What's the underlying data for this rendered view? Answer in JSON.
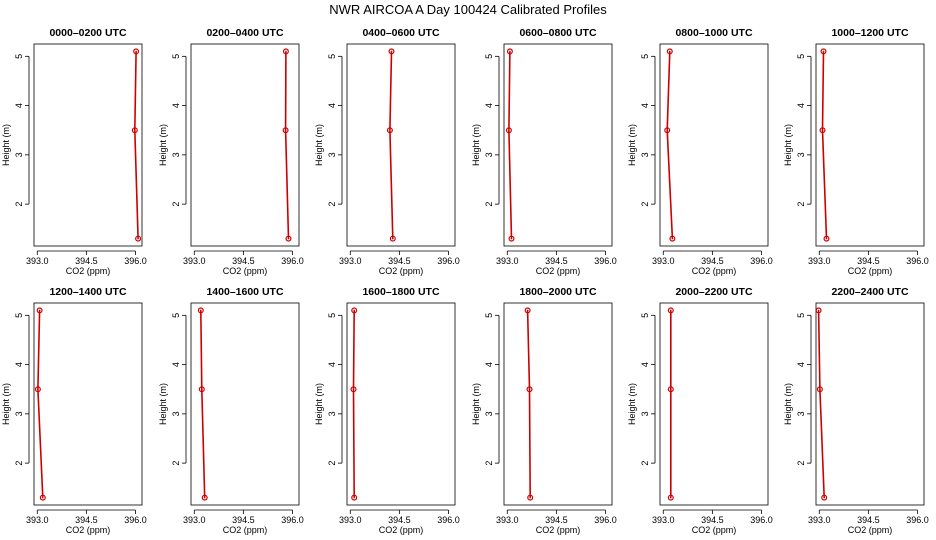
{
  "figure": {
    "title": "NWR AIRCOA A  Day 100424  Calibrated Profiles"
  },
  "style": {
    "line_color": "#cc0000",
    "point_color": "#cc0000",
    "axis_color": "#000000"
  },
  "chart_data": [
    {
      "type": "line",
      "title": "0000–0200 UTC",
      "xlabel": "CO2 (ppm)",
      "ylabel": "Height (m)",
      "xlim": [
        392.9,
        396.2
      ],
      "ylim": [
        1.15,
        5.25
      ],
      "xticks": [
        "393.0",
        "394.5",
        "396.0"
      ],
      "yticks": [
        "2",
        "3",
        "4",
        "5"
      ],
      "x": [
        396.08,
        395.98,
        396.02
      ],
      "y": [
        1.3,
        3.5,
        5.1
      ]
    },
    {
      "type": "line",
      "title": "0200–0400 UTC",
      "xlabel": "CO2 (ppm)",
      "ylabel": "Height (m)",
      "xlim": [
        392.9,
        396.2
      ],
      "ylim": [
        1.15,
        5.25
      ],
      "xticks": [
        "393.0",
        "394.5",
        "396.0"
      ],
      "yticks": [
        "2",
        "3",
        "4",
        "5"
      ],
      "x": [
        395.88,
        395.79,
        395.8
      ],
      "y": [
        1.3,
        3.5,
        5.1
      ]
    },
    {
      "type": "line",
      "title": "0400–0600 UTC",
      "xlabel": "CO2 (ppm)",
      "ylabel": "Height (m)",
      "xlim": [
        392.9,
        396.2
      ],
      "ylim": [
        1.15,
        5.25
      ],
      "xticks": [
        "393.0",
        "394.5",
        "396.0"
      ],
      "yticks": [
        "2",
        "3",
        "4",
        "5"
      ],
      "x": [
        394.3,
        394.21,
        394.26
      ],
      "y": [
        1.3,
        3.5,
        5.1
      ]
    },
    {
      "type": "line",
      "title": "0600–0800 UTC",
      "xlabel": "CO2 (ppm)",
      "ylabel": "Height (m)",
      "xlim": [
        392.9,
        396.2
      ],
      "ylim": [
        1.15,
        5.25
      ],
      "xticks": [
        "393.0",
        "394.5",
        "396.0"
      ],
      "yticks": [
        "2",
        "3",
        "4",
        "5"
      ],
      "x": [
        393.13,
        393.05,
        393.08
      ],
      "y": [
        1.3,
        3.5,
        5.1
      ]
    },
    {
      "type": "line",
      "title": "0800–1000 UTC",
      "xlabel": "CO2 (ppm)",
      "ylabel": "Height (m)",
      "xlim": [
        392.9,
        396.2
      ],
      "ylim": [
        1.15,
        5.25
      ],
      "xticks": [
        "393.0",
        "394.5",
        "396.0"
      ],
      "yticks": [
        "2",
        "3",
        "4",
        "5"
      ],
      "x": [
        393.28,
        393.12,
        393.2
      ],
      "y": [
        1.3,
        3.5,
        5.1
      ]
    },
    {
      "type": "line",
      "title": "1000–1200 UTC",
      "xlabel": "CO2 (ppm)",
      "ylabel": "Height (m)",
      "xlim": [
        392.9,
        396.2
      ],
      "ylim": [
        1.15,
        5.25
      ],
      "xticks": [
        "393.0",
        "394.5",
        "396.0"
      ],
      "yticks": [
        "2",
        "3",
        "4",
        "5"
      ],
      "x": [
        393.22,
        393.1,
        393.13
      ],
      "y": [
        1.3,
        3.5,
        5.1
      ]
    },
    {
      "type": "line",
      "title": "1200–1400 UTC",
      "xlabel": "CO2 (ppm)",
      "ylabel": "Height (m)",
      "xlim": [
        392.9,
        396.2
      ],
      "ylim": [
        1.15,
        5.25
      ],
      "xticks": [
        "393.0",
        "394.5",
        "396.0"
      ],
      "yticks": [
        "2",
        "3",
        "4",
        "5"
      ],
      "x": [
        393.17,
        393.02,
        393.07
      ],
      "y": [
        1.3,
        3.5,
        5.1
      ]
    },
    {
      "type": "line",
      "title": "1400–1600 UTC",
      "xlabel": "CO2 (ppm)",
      "ylabel": "Height (m)",
      "xlim": [
        392.9,
        396.2
      ],
      "ylim": [
        1.15,
        5.25
      ],
      "xticks": [
        "393.0",
        "394.5",
        "396.0"
      ],
      "yticks": [
        "2",
        "3",
        "4",
        "5"
      ],
      "x": [
        393.32,
        393.23,
        393.2
      ],
      "y": [
        1.3,
        3.5,
        5.1
      ]
    },
    {
      "type": "line",
      "title": "1600–1800 UTC",
      "xlabel": "CO2 (ppm)",
      "ylabel": "Height (m)",
      "xlim": [
        392.9,
        396.2
      ],
      "ylim": [
        1.15,
        5.25
      ],
      "xticks": [
        "393.0",
        "394.5",
        "396.0"
      ],
      "yticks": [
        "2",
        "3",
        "4",
        "5"
      ],
      "x": [
        393.12,
        393.1,
        393.12
      ],
      "y": [
        1.3,
        3.5,
        5.1
      ]
    },
    {
      "type": "line",
      "title": "1800–2000 UTC",
      "xlabel": "CO2 (ppm)",
      "ylabel": "Height (m)",
      "xlim": [
        392.9,
        396.2
      ],
      "ylim": [
        1.15,
        5.25
      ],
      "xticks": [
        "393.0",
        "394.5",
        "396.0"
      ],
      "yticks": [
        "2",
        "3",
        "4",
        "5"
      ],
      "x": [
        393.7,
        393.68,
        393.62
      ],
      "y": [
        1.3,
        3.5,
        5.1
      ]
    },
    {
      "type": "line",
      "title": "2000–2200 UTC",
      "xlabel": "CO2 (ppm)",
      "ylabel": "Height (m)",
      "xlim": [
        392.9,
        396.2
      ],
      "ylim": [
        1.15,
        5.25
      ],
      "xticks": [
        "393.0",
        "394.5",
        "396.0"
      ],
      "yticks": [
        "2",
        "3",
        "4",
        "5"
      ],
      "x": [
        393.23,
        393.23,
        393.23
      ],
      "y": [
        1.3,
        3.5,
        5.1
      ]
    },
    {
      "type": "line",
      "title": "2200–2400 UTC",
      "xlabel": "CO2 (ppm)",
      "ylabel": "Height (m)",
      "xlim": [
        392.9,
        396.2
      ],
      "ylim": [
        1.15,
        5.25
      ],
      "xticks": [
        "393.0",
        "394.5",
        "396.0"
      ],
      "yticks": [
        "2",
        "3",
        "4",
        "5"
      ],
      "x": [
        393.15,
        393.02,
        392.98
      ],
      "y": [
        1.3,
        3.5,
        5.1
      ]
    }
  ]
}
